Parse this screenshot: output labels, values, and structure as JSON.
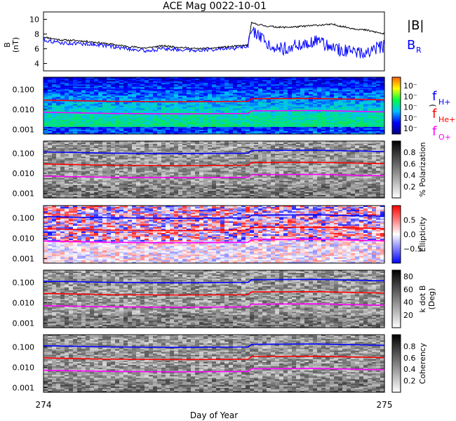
{
  "chart_data": {
    "title": "ACE Mag 0022-10-01",
    "xlabel": "Day of Year",
    "x_ticks": [
      "274",
      "275"
    ],
    "xlim": [
      274,
      275
    ],
    "panels": [
      {
        "type": "line",
        "ylabel": "B",
        "yunit": "(nT)",
        "ylim": [
          3,
          11
        ],
        "yticks": [
          "4",
          "6",
          "8",
          "10"
        ],
        "legend": [
          "|B|",
          "B",
          "R"
        ],
        "series": [
          {
            "name": "|B|",
            "color": "#000000",
            "x": [
              274.0,
              274.05,
              274.1,
              274.15,
              274.2,
              274.25,
              274.3,
              274.35,
              274.4,
              274.45,
              274.5,
              274.55,
              274.6,
              274.61,
              274.65,
              274.7,
              274.75,
              274.8,
              274.85,
              274.9,
              274.95,
              275.0
            ],
            "values": [
              7.6,
              7.2,
              7.1,
              6.9,
              6.6,
              6.3,
              6.1,
              6.4,
              6.2,
              6.0,
              6.1,
              6.3,
              6.5,
              9.5,
              9.1,
              8.9,
              9.0,
              9.2,
              9.3,
              8.8,
              8.5,
              8.0
            ]
          },
          {
            "name": "B",
            "color": "#0000ff",
            "x": [
              274.0,
              274.05,
              274.1,
              274.15,
              274.2,
              274.25,
              274.3,
              274.35,
              274.4,
              274.45,
              274.5,
              274.55,
              274.6,
              274.61,
              274.65,
              274.7,
              274.75,
              274.8,
              274.85,
              274.9,
              274.95,
              275.0
            ],
            "values": [
              7.2,
              6.8,
              6.7,
              6.6,
              6.3,
              6.0,
              5.7,
              6.0,
              5.9,
              5.8,
              5.9,
              6.0,
              6.3,
              8.5,
              6.8,
              6.0,
              6.5,
              7.0,
              6.2,
              5.5,
              5.6,
              6.4
            ]
          }
        ]
      },
      {
        "type": "heatmap",
        "ylabel": "",
        "yticks": [
          "0.100",
          "0.010",
          "0.001"
        ],
        "cbar_ticks": [
          "10⁻",
          "10⁻",
          "10⁻",
          "10⁻",
          "10⁻"
        ],
        "cbar_label": ")",
        "legend": [
          "f",
          "H+",
          "f",
          "He+",
          "f",
          "O+"
        ]
      },
      {
        "type": "heatmap",
        "ylabel": "",
        "yticks": [
          "0.100",
          "0.010",
          "0.001"
        ],
        "cbar_ticks": [
          "0.8",
          "0.6",
          "0.4",
          "0.2"
        ],
        "cbar_label": "% Polarization"
      },
      {
        "type": "heatmap",
        "ylabel": "",
        "yticks": [
          "0.100",
          "0.010",
          "0.001"
        ],
        "cbar_ticks": [
          "0.5",
          "0.0",
          "−0.5"
        ],
        "cbar_label": "Ellipticity"
      },
      {
        "type": "heatmap",
        "ylabel": "",
        "yticks": [
          "0.100",
          "0.010",
          "0.001"
        ],
        "cbar_ticks": [
          "80",
          "60",
          "40",
          "20"
        ],
        "cbar_label": "k dot B",
        "cbar_label2": "(Deg)"
      },
      {
        "type": "heatmap",
        "ylabel": "",
        "yticks": [
          "0.100",
          "0.010",
          "0.001"
        ],
        "cbar_ticks": [
          "0.8",
          "0.6",
          "0.4",
          "0.2"
        ],
        "cbar_label": "Coherency"
      }
    ],
    "gyro_lines": {
      "x": [
        274.0,
        274.2,
        274.4,
        274.6,
        274.61,
        274.8,
        275.0
      ],
      "H+": {
        "color": "#0000ff",
        "values": [
          0.115,
          0.1,
          0.095,
          0.1,
          0.135,
          0.14,
          0.12
        ]
      },
      "He+": {
        "color": "#ff0000",
        "values": [
          0.029,
          0.025,
          0.024,
          0.025,
          0.034,
          0.035,
          0.03
        ]
      },
      "O+": {
        "color": "#ff00ff",
        "values": [
          0.0072,
          0.0063,
          0.006,
          0.0063,
          0.0085,
          0.0088,
          0.0075
        ]
      }
    }
  }
}
